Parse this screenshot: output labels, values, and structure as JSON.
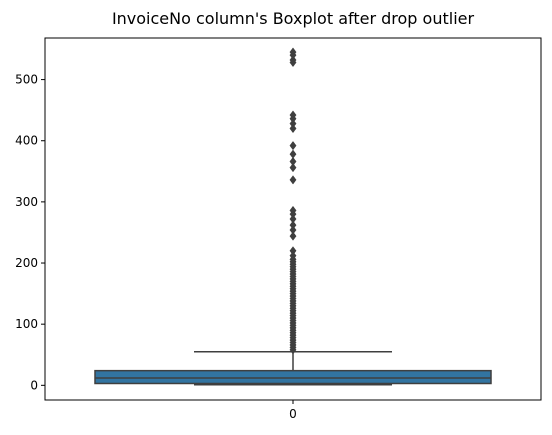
{
  "chart_data": {
    "type": "boxplot",
    "title": "InvoiceNo column's Boxplot after drop outlier",
    "xlabel": "",
    "ylabel": "",
    "categories": [
      "0"
    ],
    "ylim": [
      -24,
      568
    ],
    "yticks": [
      0,
      100,
      200,
      300,
      400,
      500
    ],
    "box_color": "#3274a1",
    "line_color": "#3f3f3f",
    "box": {
      "whisker_low": 1,
      "q1": 3,
      "median": 12,
      "q3": 24,
      "whisker_high": 55
    },
    "outliers": [
      545,
      540,
      532,
      528,
      442,
      436,
      428,
      420,
      392,
      378,
      366,
      356,
      336,
      286,
      280,
      272,
      262,
      254,
      244,
      220,
      212,
      206,
      202,
      198,
      194,
      190,
      186,
      182,
      178,
      174,
      170,
      166,
      162,
      158,
      154,
      150,
      146,
      142,
      138,
      134,
      130,
      126,
      122,
      118,
      114,
      110,
      106,
      102,
      98,
      94,
      90,
      86,
      82,
      78,
      74,
      70,
      66,
      62,
      58
    ]
  }
}
